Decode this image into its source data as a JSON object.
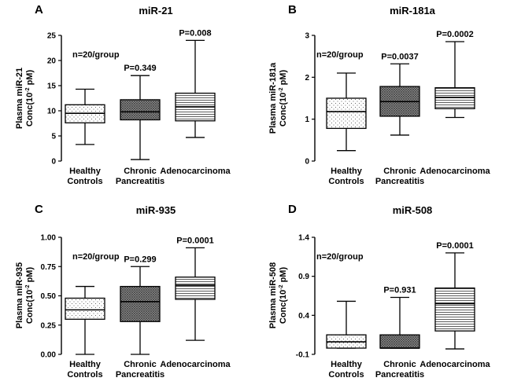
{
  "figure_domain": "box plots of plasma microRNA concentrations",
  "chart_data": [
    {
      "type": "box",
      "panel_label": "A",
      "title": "miR-21",
      "ylabel_line1": "Plasma miR-21",
      "ylabel_line2_prefix": "Conc(10",
      "ylabel_exponent": "-2",
      "ylabel_line2_suffix": " pM)",
      "ylim": [
        0,
        25
      ],
      "yticks": [
        0,
        5,
        10,
        15,
        20,
        25
      ],
      "ytick_labels": [
        "0",
        "5",
        "10",
        "15",
        "20",
        "25"
      ],
      "note": "n=20/group",
      "categories": [
        {
          "line1": "Healthy",
          "line2": "Controls"
        },
        {
          "line1": "Chronic",
          "line2": "Pancreatitis"
        },
        {
          "line1": "Adenocarcinoma",
          "line2": ""
        }
      ],
      "boxes": [
        {
          "min": 3.3,
          "q1": 7.6,
          "median": 9.5,
          "q3": 11.2,
          "max": 14.3,
          "pattern": "dots",
          "p_value": ""
        },
        {
          "min": 0.3,
          "q1": 8.2,
          "median": 9.8,
          "q3": 12.2,
          "max": 17.0,
          "pattern": "cross",
          "p_value": "P=0.349"
        },
        {
          "min": 4.7,
          "q1": 8.0,
          "median": 10.8,
          "q3": 13.5,
          "max": 24.0,
          "pattern": "lines",
          "p_value": "P=0.008"
        }
      ]
    },
    {
      "type": "box",
      "panel_label": "B",
      "title": "miR-181a",
      "ylabel_line1": "Plasma miR-181a",
      "ylabel_line2_prefix": "Conc(10",
      "ylabel_exponent": "-2",
      "ylabel_line2_suffix": " pM)",
      "ylim": [
        0,
        3
      ],
      "yticks": [
        0,
        1,
        2,
        3
      ],
      "ytick_labels": [
        "0",
        "1",
        "2",
        "3"
      ],
      "note": "n=20/group",
      "categories": [
        {
          "line1": "Healthy",
          "line2": "Controls"
        },
        {
          "line1": "Chronic",
          "line2": "Pancreatitis"
        },
        {
          "line1": "Adenocarcinoma",
          "line2": ""
        }
      ],
      "boxes": [
        {
          "min": 0.25,
          "q1": 0.78,
          "median": 1.18,
          "q3": 1.5,
          "max": 2.1,
          "pattern": "dots",
          "p_value": ""
        },
        {
          "min": 0.62,
          "q1": 1.07,
          "median": 1.42,
          "q3": 1.78,
          "max": 2.32,
          "pattern": "cross",
          "p_value": "P=0.0037"
        },
        {
          "min": 1.04,
          "q1": 1.25,
          "median": 1.52,
          "q3": 1.75,
          "max": 2.85,
          "pattern": "lines",
          "p_value": "P=0.0002"
        }
      ]
    },
    {
      "type": "box",
      "panel_label": "C",
      "title": "miR-935",
      "ylabel_line1": "Plasma miR-935",
      "ylabel_line2_prefix": "Conc(10",
      "ylabel_exponent": "-2",
      "ylabel_line2_suffix": " pM)",
      "ylim": [
        0,
        1
      ],
      "yticks": [
        0,
        0.25,
        0.5,
        0.75,
        1.0
      ],
      "ytick_labels": [
        "0.00",
        "0.25",
        "0.50",
        "0.75",
        "1.00"
      ],
      "note": "n=20/group",
      "categories": [
        {
          "line1": "Healthy",
          "line2": "Controls"
        },
        {
          "line1": "Chronic",
          "line2": "Pancreatitis"
        },
        {
          "line1": "Adenocarcinoma",
          "line2": ""
        }
      ],
      "boxes": [
        {
          "min": 0.0,
          "q1": 0.3,
          "median": 0.38,
          "q3": 0.48,
          "max": 0.58,
          "pattern": "dots",
          "p_value": ""
        },
        {
          "min": 0.0,
          "q1": 0.28,
          "median": 0.45,
          "q3": 0.58,
          "max": 0.75,
          "pattern": "cross",
          "p_value": "P=0.299"
        },
        {
          "min": 0.12,
          "q1": 0.47,
          "median": 0.59,
          "q3": 0.66,
          "max": 0.91,
          "pattern": "lines",
          "p_value": "P=0.0001"
        }
      ]
    },
    {
      "type": "box",
      "panel_label": "D",
      "title": "miR-508",
      "ylabel_line1": "Plasma miR-508",
      "ylabel_line2_prefix": "Conc(10",
      "ylabel_exponent": "-2",
      "ylabel_line2_suffix": " pM)",
      "ylim": [
        -0.1,
        1.4
      ],
      "yticks": [
        -0.1,
        0.4,
        0.9,
        1.4
      ],
      "ytick_labels": [
        "-0.1",
        "0.4",
        "0.9",
        "1.4"
      ],
      "note": "n=20/group",
      "categories": [
        {
          "line1": "Healthy",
          "line2": "Controls"
        },
        {
          "line1": "Chronic",
          "line2": "Pancreatitis"
        },
        {
          "line1": "Adenocarcinoma",
          "line2": ""
        }
      ],
      "boxes": [
        {
          "min": -0.02,
          "q1": -0.02,
          "median": 0.06,
          "q3": 0.15,
          "max": 0.58,
          "pattern": "dots",
          "p_value": ""
        },
        {
          "min": -0.02,
          "q1": -0.02,
          "median": -0.02,
          "q3": 0.15,
          "max": 0.63,
          "pattern": "cross",
          "p_value": "P=0.931"
        },
        {
          "min": -0.03,
          "q1": 0.2,
          "median": 0.55,
          "q3": 0.75,
          "max": 1.2,
          "pattern": "lines",
          "p_value": "P=0.0001"
        }
      ]
    }
  ]
}
